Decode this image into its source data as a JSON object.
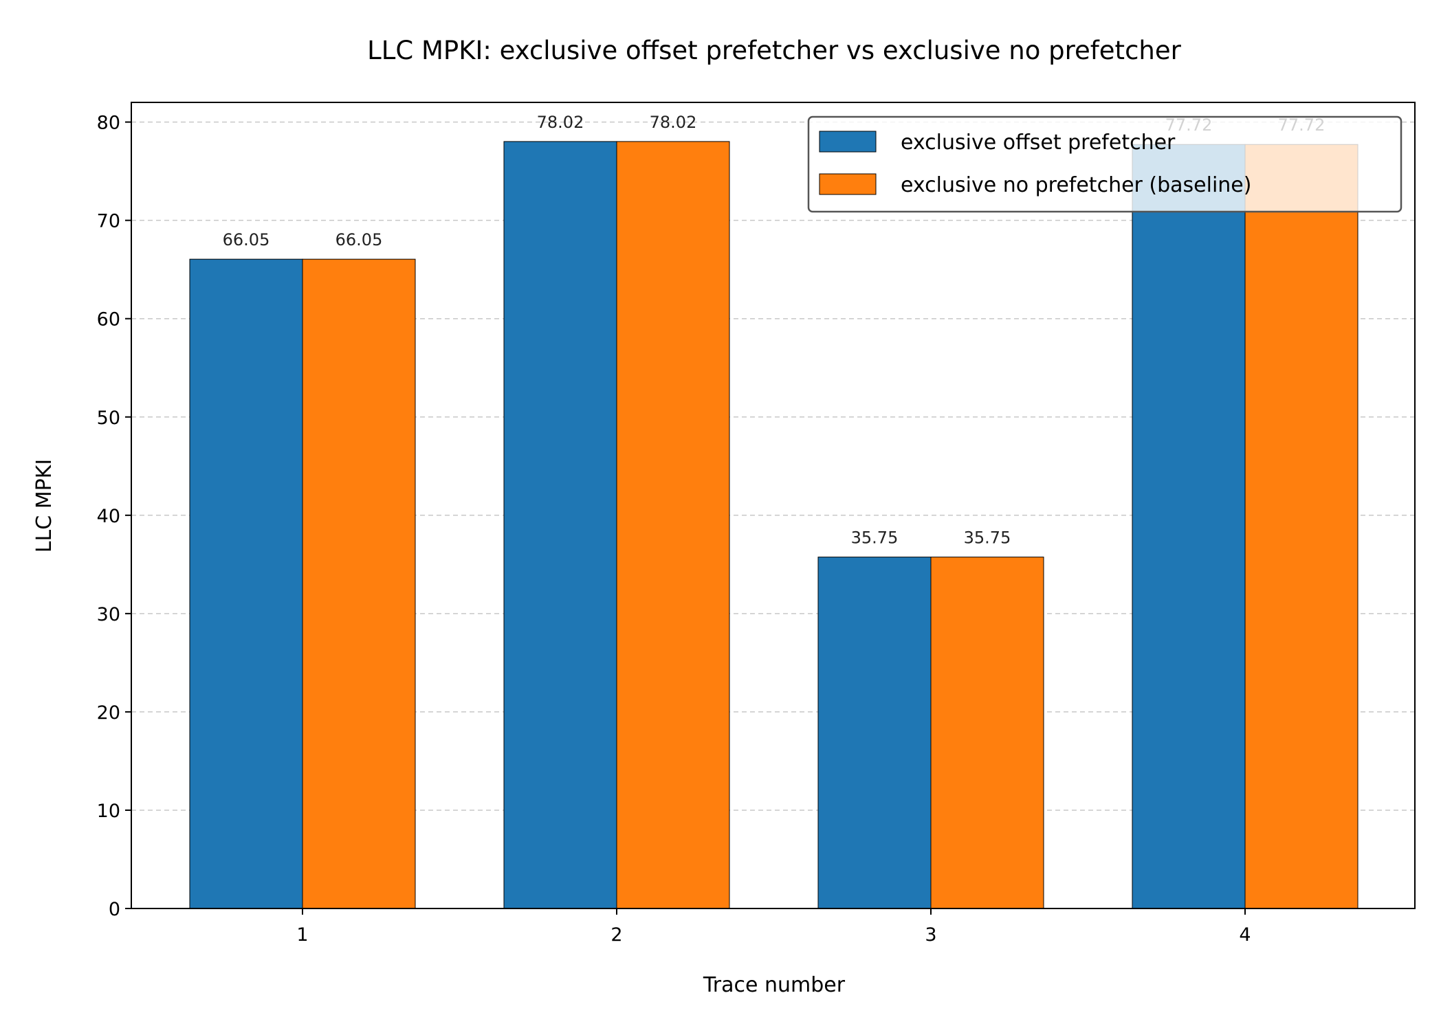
{
  "chart_data": {
    "type": "bar",
    "title": "LLC MPKI: exclusive offset prefetcher vs exclusive no prefetcher",
    "xlabel": "Trace number",
    "ylabel": "LLC MPKI",
    "categories": [
      "1",
      "2",
      "3",
      "4"
    ],
    "ylim": [
      0,
      82
    ],
    "yticks": [
      0,
      10,
      20,
      30,
      40,
      50,
      60,
      70,
      80
    ],
    "grid": "y-dashed",
    "legend_position": "top-right",
    "series": [
      {
        "name": "exclusive offset prefetcher",
        "color": "#1f77b4",
        "values": [
          66.05,
          78.02,
          35.75,
          77.72
        ],
        "labels": [
          "66.05",
          "78.02",
          "35.75",
          "77.72"
        ]
      },
      {
        "name": "exclusive no prefetcher (baseline)",
        "color": "#ff7f0e",
        "values": [
          66.05,
          78.02,
          35.75,
          77.72
        ],
        "labels": [
          "66.05",
          "78.02",
          "35.75",
          "77.72"
        ]
      }
    ]
  }
}
